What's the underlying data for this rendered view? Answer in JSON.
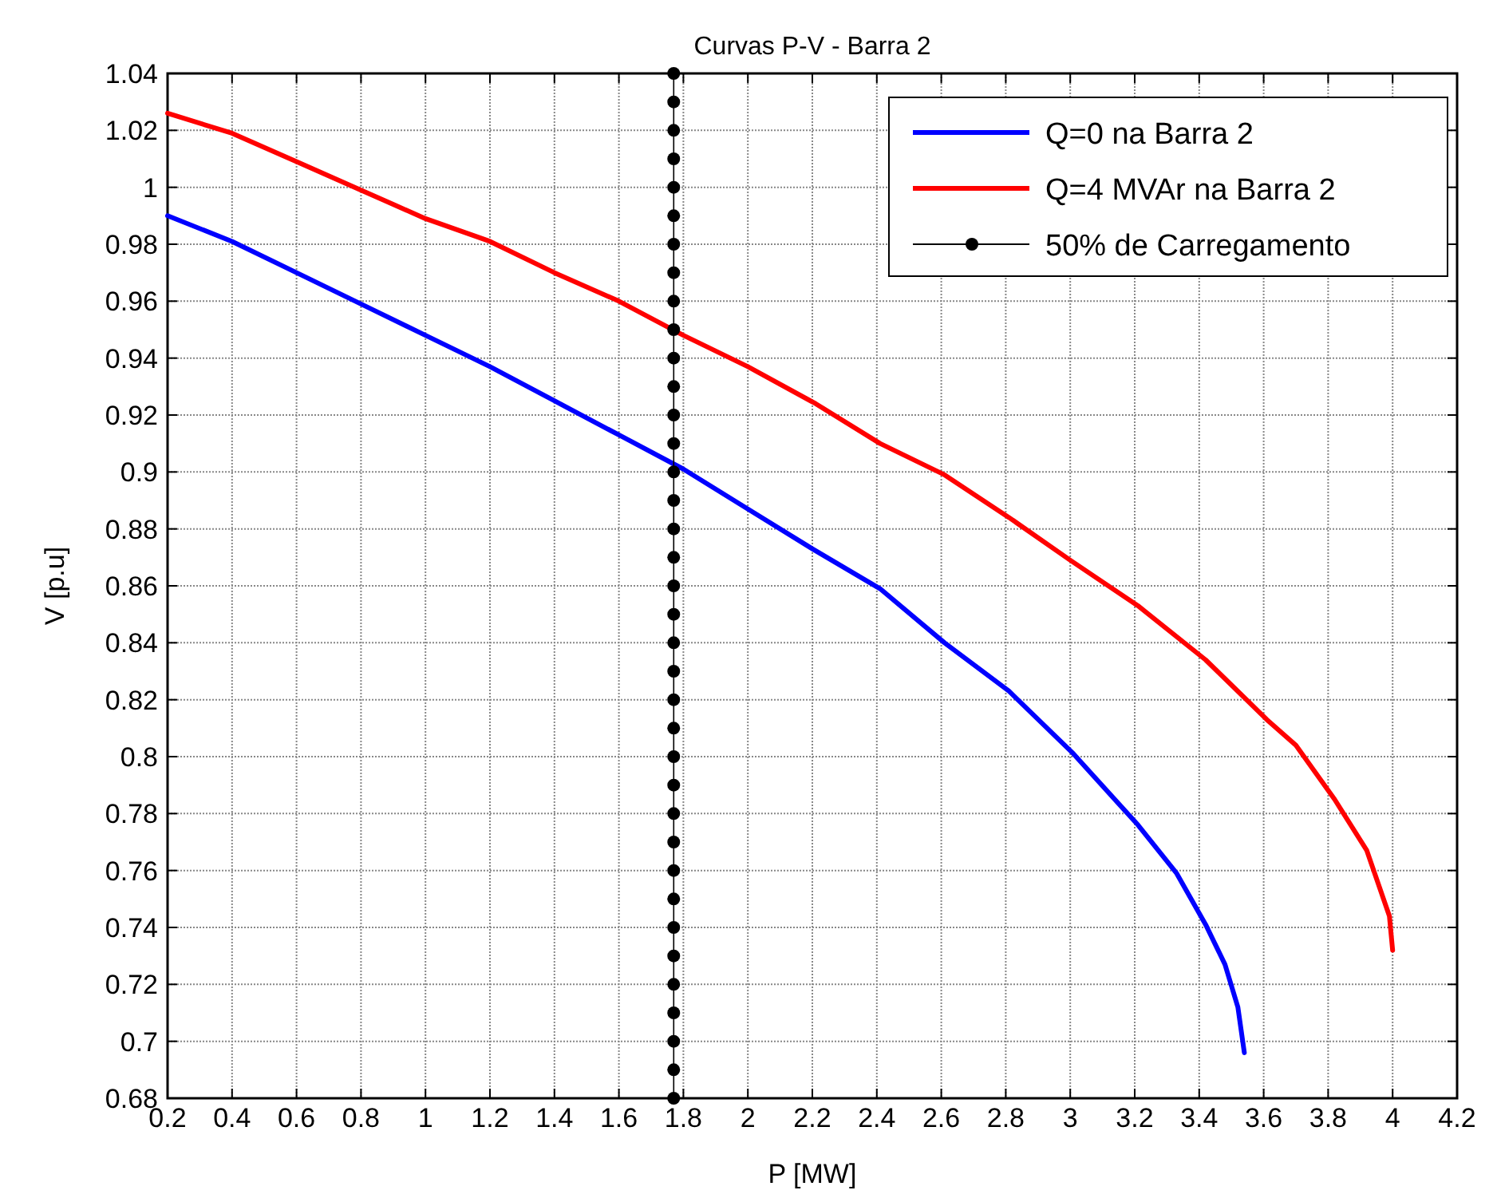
{
  "chart_data": {
    "type": "line",
    "title": "Curvas P-V - Barra 2",
    "xlabel": "P [MW]",
    "ylabel": "V [p.u]",
    "xlim": [
      0.2,
      4.2
    ],
    "xticks": [
      0.2,
      0.4,
      0.6,
      0.8,
      1,
      1.2,
      1.4,
      1.6,
      1.8,
      2,
      2.2,
      2.4,
      2.6,
      2.8,
      3,
      3.2,
      3.4,
      3.6,
      3.8,
      4,
      4.2
    ],
    "ylim": [
      0.68,
      1.04
    ],
    "yticks": [
      0.68,
      0.7,
      0.72,
      0.74,
      0.76,
      0.78,
      0.8,
      0.82,
      0.84,
      0.86,
      0.88,
      0.9,
      0.92,
      0.94,
      0.96,
      0.98,
      1,
      1.02,
      1.04
    ],
    "grid": true,
    "legend": "top right",
    "series": [
      {
        "name": "Q=0 na Barra 2",
        "color": "#0000ff",
        "marker": "none",
        "x": [
          0.2,
          0.4,
          0.6,
          0.8,
          1.0,
          1.2,
          1.4,
          1.6,
          1.8,
          2.0,
          2.2,
          2.41,
          2.61,
          2.81,
          3.01,
          3.21,
          3.33,
          3.42,
          3.48,
          3.52,
          3.54
        ],
        "values": [
          0.99,
          0.981,
          0.97,
          0.959,
          0.948,
          0.937,
          0.925,
          0.913,
          0.901,
          0.887,
          0.873,
          0.859,
          0.84,
          0.823,
          0.801,
          0.776,
          0.759,
          0.741,
          0.727,
          0.712,
          0.696
        ]
      },
      {
        "name": "Q=4 MVAr na Barra 2",
        "color": "#ff0000",
        "marker": "none",
        "x": [
          0.2,
          0.4,
          0.6,
          0.8,
          1.0,
          1.2,
          1.4,
          1.6,
          1.8,
          2.0,
          2.21,
          2.41,
          2.61,
          2.81,
          3.0,
          3.21,
          3.42,
          3.61,
          3.7,
          3.82,
          3.92,
          3.99,
          4.0
        ],
        "values": [
          1.026,
          1.019,
          1.009,
          0.999,
          0.989,
          0.981,
          0.97,
          0.96,
          0.948,
          0.937,
          0.924,
          0.91,
          0.899,
          0.884,
          0.869,
          0.853,
          0.834,
          0.813,
          0.804,
          0.785,
          0.767,
          0.744,
          0.732
        ]
      },
      {
        "name": "50% de Carregamento",
        "color": "#000000",
        "marker": "circle",
        "line_style": "solid",
        "x": [
          1.77,
          1.77,
          1.77,
          1.77,
          1.77,
          1.77,
          1.77,
          1.77,
          1.77,
          1.77,
          1.77,
          1.77,
          1.77,
          1.77,
          1.77,
          1.77,
          1.77,
          1.77,
          1.77,
          1.77,
          1.77,
          1.77,
          1.77,
          1.77,
          1.77,
          1.77,
          1.77,
          1.77,
          1.77,
          1.77,
          1.77,
          1.77,
          1.77,
          1.77,
          1.77,
          1.77,
          1.77
        ],
        "values": [
          0.68,
          0.69,
          0.7,
          0.71,
          0.72,
          0.73,
          0.74,
          0.75,
          0.76,
          0.77,
          0.78,
          0.79,
          0.8,
          0.81,
          0.82,
          0.83,
          0.84,
          0.85,
          0.86,
          0.87,
          0.88,
          0.89,
          0.9,
          0.91,
          0.92,
          0.93,
          0.94,
          0.95,
          0.96,
          0.97,
          0.98,
          0.99,
          1.0,
          1.01,
          1.02,
          1.03,
          1.04
        ]
      }
    ]
  }
}
